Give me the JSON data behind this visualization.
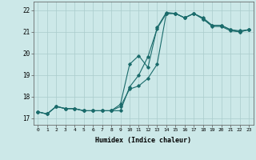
{
  "xlabel": "Humidex (Indice chaleur)",
  "bg_color": "#cce8e8",
  "grid_color": "#aacccc",
  "line_color": "#1a6b6b",
  "xlim": [
    -0.5,
    23.5
  ],
  "ylim": [
    16.7,
    22.4
  ],
  "yticks": [
    17,
    18,
    19,
    20,
    21,
    22
  ],
  "xticks": [
    0,
    1,
    2,
    3,
    4,
    5,
    6,
    7,
    8,
    9,
    10,
    11,
    12,
    13,
    14,
    15,
    16,
    17,
    18,
    19,
    20,
    21,
    22,
    23
  ],
  "line1_x": [
    0,
    1,
    2,
    3,
    4,
    5,
    6,
    7,
    8,
    9,
    10,
    11,
    12,
    13,
    14,
    15,
    16,
    17,
    18,
    19,
    20,
    21,
    22,
    23
  ],
  "line1_y": [
    17.3,
    17.2,
    17.55,
    17.45,
    17.45,
    17.35,
    17.35,
    17.35,
    17.35,
    17.35,
    18.45,
    19.0,
    19.85,
    21.15,
    21.85,
    21.85,
    21.65,
    21.85,
    21.65,
    21.3,
    21.3,
    21.1,
    21.05,
    21.1
  ],
  "line2_x": [
    0,
    1,
    2,
    3,
    4,
    5,
    6,
    7,
    8,
    9,
    10,
    11,
    12,
    13,
    14,
    15,
    16,
    17,
    18,
    19,
    20,
    21,
    22,
    23
  ],
  "line2_y": [
    17.3,
    17.2,
    17.55,
    17.45,
    17.45,
    17.35,
    17.35,
    17.35,
    17.35,
    17.65,
    19.5,
    19.9,
    19.35,
    21.2,
    21.9,
    21.85,
    21.65,
    21.85,
    21.6,
    21.3,
    21.3,
    21.1,
    21.0,
    21.1
  ],
  "line3_x": [
    0,
    1,
    2,
    3,
    4,
    5,
    6,
    7,
    8,
    9,
    10,
    11,
    12,
    13,
    14,
    15,
    16,
    17,
    18,
    19,
    20,
    21,
    22,
    23
  ],
  "line3_y": [
    17.3,
    17.2,
    17.55,
    17.45,
    17.45,
    17.35,
    17.35,
    17.35,
    17.35,
    17.55,
    18.35,
    18.5,
    18.85,
    19.5,
    21.85,
    21.85,
    21.65,
    21.85,
    21.6,
    21.25,
    21.25,
    21.05,
    21.0,
    21.1
  ]
}
